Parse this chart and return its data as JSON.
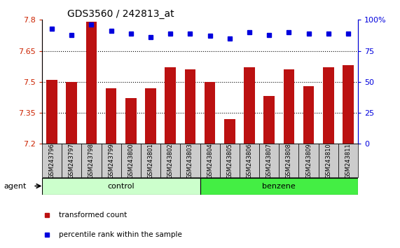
{
  "title": "GDS3560 / 242813_at",
  "samples": [
    "GSM243796",
    "GSM243797",
    "GSM243798",
    "GSM243799",
    "GSM243800",
    "GSM243801",
    "GSM243802",
    "GSM243803",
    "GSM243804",
    "GSM243805",
    "GSM243806",
    "GSM243807",
    "GSM243808",
    "GSM243809",
    "GSM243810",
    "GSM243811"
  ],
  "bar_values": [
    7.51,
    7.5,
    7.79,
    7.47,
    7.42,
    7.47,
    7.57,
    7.56,
    7.5,
    7.32,
    7.57,
    7.43,
    7.56,
    7.48,
    7.57,
    7.58
  ],
  "percentile_values": [
    93,
    88,
    96,
    91,
    89,
    86,
    89,
    89,
    87,
    85,
    90,
    88,
    90,
    89,
    89,
    89
  ],
  "bar_color": "#BB1111",
  "percentile_color": "#0000DD",
  "ylim_left": [
    7.2,
    7.8
  ],
  "ylim_right": [
    0,
    100
  ],
  "yticks_left": [
    7.2,
    7.35,
    7.5,
    7.65,
    7.8
  ],
  "yticks_right": [
    0,
    25,
    50,
    75,
    100
  ],
  "ytick_labels_left": [
    "7.2",
    "7.35",
    "7.5",
    "7.65",
    "7.8"
  ],
  "ytick_labels_right": [
    "0",
    "25",
    "50",
    "75",
    "100%"
  ],
  "hlines": [
    7.35,
    7.5,
    7.65
  ],
  "groups": [
    {
      "label": "control",
      "start": 0,
      "end": 8,
      "color": "#CCFFCC"
    },
    {
      "label": "benzene",
      "start": 8,
      "end": 16,
      "color": "#44EE44"
    }
  ],
  "agent_label": "agent",
  "legend_items": [
    {
      "color": "#BB1111",
      "label": "transformed count"
    },
    {
      "color": "#0000DD",
      "label": "percentile rank within the sample"
    }
  ],
  "bar_width": 0.55,
  "background_color": "#FFFFFF",
  "plot_bg_color": "#FFFFFF",
  "tick_box_color": "#CCCCCC"
}
